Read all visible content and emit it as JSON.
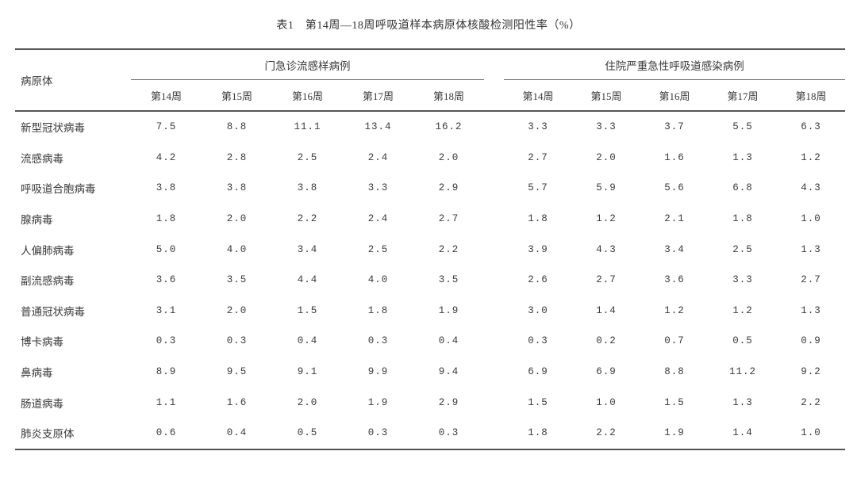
{
  "page": {
    "title": "表1　第14周—18周呼吸道样本病原体核酸检测阳性率（%）"
  },
  "table": {
    "pathogen_header": "病原体",
    "groups": [
      {
        "label": "门急诊流感样病例",
        "weeks": [
          "第14周",
          "第15周",
          "第16周",
          "第17周",
          "第18周"
        ]
      },
      {
        "label": "住院严重急性呼吸道感染病例",
        "weeks": [
          "第14周",
          "第15周",
          "第16周",
          "第17周",
          "第18周"
        ]
      }
    ],
    "rows": [
      {
        "pathogen": "新型冠状病毒",
        "outpatient": [
          "7.5",
          "8.8",
          "11.1",
          "13.4",
          "16.2"
        ],
        "inpatient": [
          "3.3",
          "3.3",
          "3.7",
          "5.5",
          "6.3"
        ]
      },
      {
        "pathogen": "流感病毒",
        "outpatient": [
          "4.2",
          "2.8",
          "2.5",
          "2.4",
          "2.0"
        ],
        "inpatient": [
          "2.7",
          "2.0",
          "1.6",
          "1.3",
          "1.2"
        ]
      },
      {
        "pathogen": "呼吸道合胞病毒",
        "outpatient": [
          "3.8",
          "3.8",
          "3.8",
          "3.3",
          "2.9"
        ],
        "inpatient": [
          "5.7",
          "5.9",
          "5.6",
          "6.8",
          "4.3"
        ]
      },
      {
        "pathogen": "腺病毒",
        "outpatient": [
          "1.8",
          "2.0",
          "2.2",
          "2.4",
          "2.7"
        ],
        "inpatient": [
          "1.8",
          "1.2",
          "2.1",
          "1.8",
          "1.0"
        ]
      },
      {
        "pathogen": "人偏肺病毒",
        "outpatient": [
          "5.0",
          "4.0",
          "3.4",
          "2.5",
          "2.2"
        ],
        "inpatient": [
          "3.9",
          "4.3",
          "3.4",
          "2.5",
          "1.3"
        ]
      },
      {
        "pathogen": "副流感病毒",
        "outpatient": [
          "3.6",
          "3.5",
          "4.4",
          "4.0",
          "3.5"
        ],
        "inpatient": [
          "2.6",
          "2.7",
          "3.6",
          "3.3",
          "2.7"
        ]
      },
      {
        "pathogen": "普通冠状病毒",
        "outpatient": [
          "3.1",
          "2.0",
          "1.5",
          "1.8",
          "1.9"
        ],
        "inpatient": [
          "3.0",
          "1.4",
          "1.2",
          "1.2",
          "1.3"
        ]
      },
      {
        "pathogen": "博卡病毒",
        "outpatient": [
          "0.3",
          "0.3",
          "0.4",
          "0.3",
          "0.4"
        ],
        "inpatient": [
          "0.3",
          "0.2",
          "0.7",
          "0.5",
          "0.9"
        ]
      },
      {
        "pathogen": "鼻病毒",
        "outpatient": [
          "8.9",
          "9.5",
          "9.1",
          "9.9",
          "9.4"
        ],
        "inpatient": [
          "6.9",
          "6.9",
          "8.8",
          "11.2",
          "9.2"
        ]
      },
      {
        "pathogen": "肠道病毒",
        "outpatient": [
          "1.1",
          "1.6",
          "2.0",
          "1.9",
          "2.9"
        ],
        "inpatient": [
          "1.5",
          "1.0",
          "1.5",
          "1.3",
          "2.2"
        ]
      },
      {
        "pathogen": "肺炎支原体",
        "outpatient": [
          "0.6",
          "0.4",
          "0.5",
          "0.3",
          "0.3"
        ],
        "inpatient": [
          "1.8",
          "2.2",
          "1.9",
          "1.4",
          "1.0"
        ]
      }
    ]
  },
  "colors": {
    "background": "#ffffff",
    "text": "#3a3a3a",
    "rule_heavy": "#555555",
    "rule_light": "#6f6f6f"
  }
}
